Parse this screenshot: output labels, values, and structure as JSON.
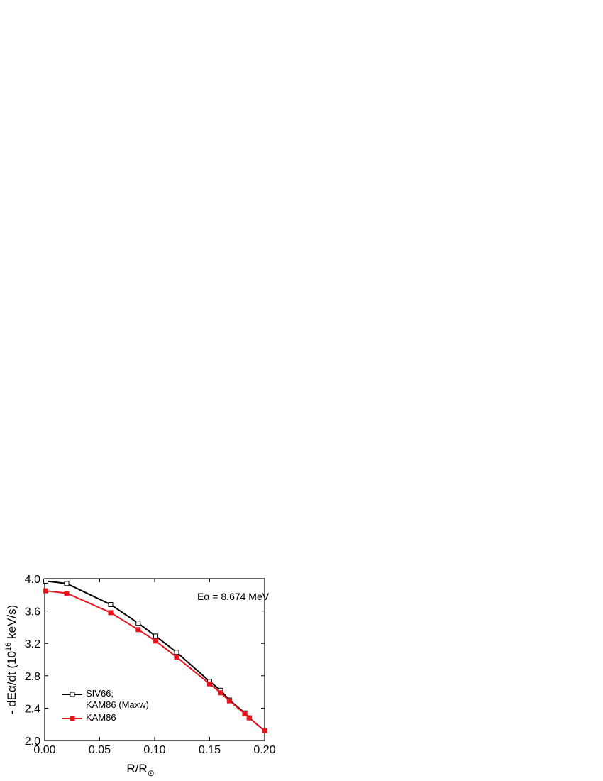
{
  "chart_data": {
    "type": "line",
    "xlabel": [
      "R/R",
      "⊙"
    ],
    "ylabel": [
      "- dEα/dt (10",
      "16",
      " keV/s)"
    ],
    "annotation": "Eα = 8.674 MeV",
    "x": [
      0.001,
      0.02,
      0.06,
      0.085,
      0.101,
      0.12,
      0.15,
      0.16,
      0.168,
      0.182,
      0.186,
      0.2
    ],
    "series": [
      {
        "name": "SIV66;\nKAM86 (Maxw)",
        "color": "#000000",
        "marker": "open-square",
        "values": [
          3.97,
          3.94,
          3.68,
          3.45,
          3.29,
          3.09,
          2.73,
          2.62,
          2.5,
          2.34,
          2.28,
          2.12
        ]
      },
      {
        "name": "KAM86",
        "color": "#e8141c",
        "marker": "filled-square",
        "values": [
          3.85,
          3.82,
          3.58,
          3.37,
          3.23,
          3.03,
          2.7,
          2.59,
          2.49,
          2.33,
          2.28,
          2.12
        ]
      }
    ],
    "xlim": [
      0,
      0.2
    ],
    "xticks": [
      {
        "value": 0,
        "label": "0.00"
      },
      0.05,
      {
        "value": 0.1,
        "label": "0.10"
      },
      0.15,
      {
        "value": 0.2,
        "label": "0.20"
      }
    ],
    "ylim": [
      2,
      4
    ],
    "yticks": [
      {
        "value": 2,
        "label": "2.0"
      },
      2.4,
      2.8,
      3.2,
      3.6,
      {
        "value": 4,
        "label": "4.0"
      }
    ],
    "legend": "lower left"
  }
}
